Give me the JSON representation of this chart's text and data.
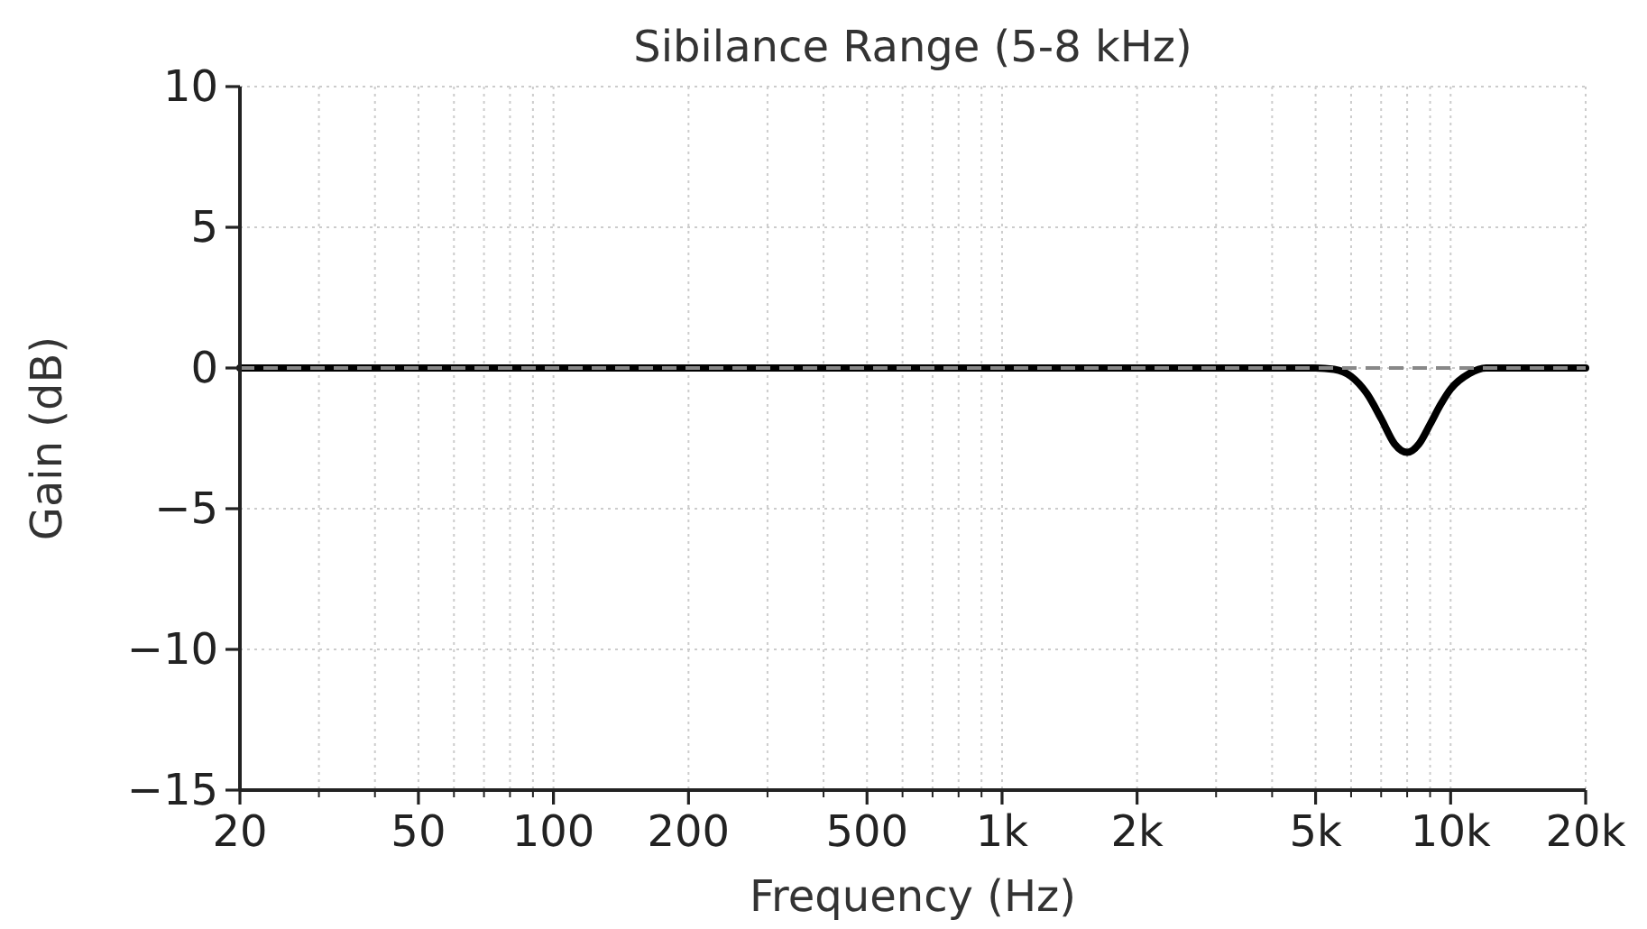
{
  "chart_data": {
    "type": "line",
    "title": "Sibilance Range (5-8 kHz)",
    "xlabel": "Frequency (Hz)",
    "ylabel": "Gain (dB)",
    "log": "x",
    "grid": true,
    "line_style": "solid",
    "marker": "none",
    "x": [
      20,
      5000,
      5500,
      6000,
      6500,
      7000,
      7500,
      8000,
      8500,
      9000,
      9500,
      10000,
      11000,
      12000,
      20000
    ],
    "series": [
      {
        "color": "#000000",
        "values": [
          0,
          0,
          -0.05,
          -0.3,
          -0.9,
          -1.8,
          -2.7,
          -3,
          -2.7,
          -2,
          -1.3,
          -0.75,
          -0.2,
          0,
          0
        ]
      }
    ],
    "xlim": [
      20,
      20000
    ],
    "ylim": [
      -15,
      10
    ],
    "xticks": [
      20,
      {
        "value": 30,
        "label": null
      },
      {
        "value": 40,
        "label": null
      },
      50,
      {
        "value": 60,
        "label": null
      },
      {
        "value": 70,
        "label": null
      },
      {
        "value": 80,
        "label": null
      },
      {
        "value": 90,
        "label": null
      },
      100,
      200,
      {
        "value": 300,
        "label": null
      },
      {
        "value": 400,
        "label": null
      },
      500,
      {
        "value": 600,
        "label": null
      },
      {
        "value": 700,
        "label": null
      },
      {
        "value": 800,
        "label": null
      },
      {
        "value": 900,
        "label": null
      },
      {
        "value": 1000,
        "label": "1k"
      },
      {
        "value": 2000,
        "label": "2k"
      },
      {
        "value": 3000,
        "label": null
      },
      {
        "value": 4000,
        "label": null
      },
      {
        "value": 5000,
        "label": "5k"
      },
      {
        "value": 6000,
        "label": null
      },
      {
        "value": 7000,
        "label": null
      },
      {
        "value": 8000,
        "label": null
      },
      {
        "value": 9000,
        "label": null
      },
      {
        "value": 10000,
        "label": "10k"
      },
      {
        "value": 20000,
        "label": "20k"
      }
    ],
    "yticks": [
      {
        "value": -15,
        "label": "−15"
      },
      {
        "value": -10,
        "label": "−10"
      },
      {
        "value": -5,
        "label": "−5"
      },
      0,
      5,
      10
    ],
    "ref_lines": [
      {
        "axis": "y",
        "value": 0,
        "color": "#888888",
        "line_style": "dashed"
      }
    ]
  }
}
